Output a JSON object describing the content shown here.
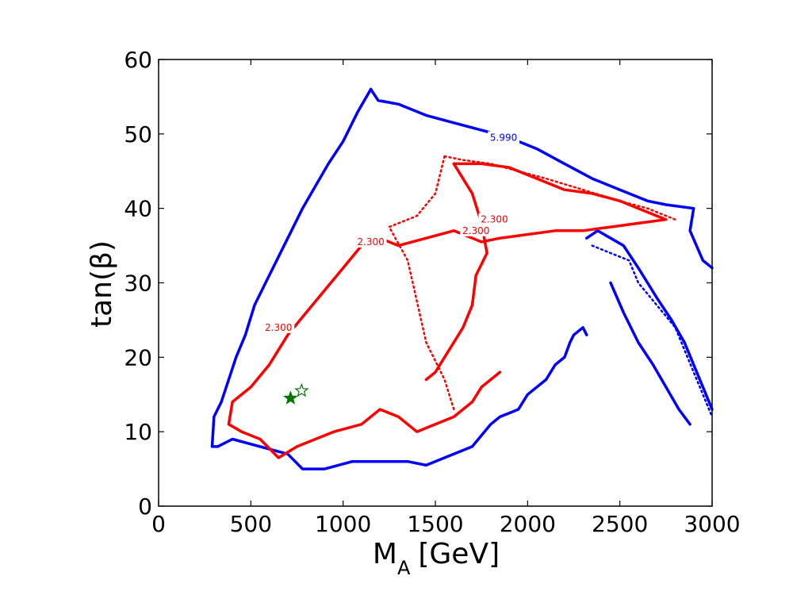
{
  "chart_data": {
    "type": "line",
    "title": "",
    "xlabel_main": "M",
    "xlabel_sub": "A",
    "xlabel_unit": "[GeV]",
    "ylabel": "tan(β)",
    "xlim": [
      0,
      3000
    ],
    "ylim": [
      0,
      60
    ],
    "xticks": [
      0,
      500,
      1000,
      1500,
      2000,
      2500,
      3000
    ],
    "yticks": [
      0,
      10,
      20,
      30,
      40,
      50,
      60
    ],
    "xtick_labels": [
      "0",
      "500",
      "1000",
      "1500",
      "2000",
      "2500",
      "3000"
    ],
    "ytick_labels": [
      "0",
      "10",
      "20",
      "30",
      "40",
      "50",
      "60"
    ],
    "grid": false,
    "colors": {
      "blue": "#0000ff",
      "red": "#ff0000",
      "green": "#007700"
    },
    "series": [
      {
        "color": "blue",
        "style": "solid",
        "x": [
          1150,
          1190,
          1300,
          1450,
          1600,
          1750,
          1900,
          2050,
          2200,
          2350,
          2500,
          2650,
          2750,
          2900,
          2880,
          2950,
          3000
        ],
        "y": [
          56,
          54.5,
          54,
          52.5,
          51.5,
          50.5,
          49.5,
          48,
          46,
          44,
          42.5,
          41,
          40.5,
          40,
          37,
          33,
          32
        ]
      },
      {
        "color": "blue",
        "style": "solid",
        "x": [
          1150,
          1080,
          1000,
          920,
          850,
          780,
          700,
          640,
          580,
          520,
          470,
          420,
          380,
          340,
          300,
          290,
          320,
          400,
          550,
          700,
          780,
          900,
          1050,
          1200,
          1350,
          1450,
          1600,
          1700,
          1800,
          1850,
          1900,
          1950,
          2000,
          2100,
          2150,
          2200,
          2230,
          2250,
          2300,
          2320
        ],
        "y": [
          56,
          53,
          49,
          46,
          43,
          40,
          36,
          33,
          30,
          27,
          23,
          20,
          17,
          14,
          12,
          8,
          8,
          9,
          8,
          7,
          5,
          5,
          6,
          6,
          6,
          5.5,
          7,
          8,
          11,
          12,
          12.5,
          13,
          15,
          17,
          19,
          20,
          22,
          23,
          24,
          23
        ]
      },
      {
        "color": "blue",
        "style": "solid",
        "x": [
          2320,
          2380,
          2450,
          2520,
          2600,
          2650,
          2700,
          2780,
          2850,
          2900,
          2950,
          3000
        ],
        "y": [
          36,
          37,
          36,
          35,
          32,
          30,
          28,
          25,
          22,
          19,
          16,
          13
        ]
      },
      {
        "color": "blue",
        "style": "dotted",
        "x": [
          2350,
          2450,
          2550,
          2600,
          2700,
          2800,
          2850,
          2900,
          2950,
          3000
        ],
        "y": [
          35,
          34,
          33,
          30,
          27,
          24,
          21,
          18,
          15,
          12
        ]
      },
      {
        "color": "blue",
        "style": "solid",
        "x": [
          2450,
          2520,
          2600,
          2680,
          2750,
          2820,
          2880
        ],
        "y": [
          30,
          26,
          22,
          19,
          16,
          13,
          11
        ]
      },
      {
        "color": "red",
        "style": "solid",
        "x": [
          1600,
          1750,
          1900,
          2050,
          2200,
          2350,
          2500,
          2600,
          2700,
          2750,
          2600,
          2450,
          2300,
          2150,
          2000,
          1850,
          1750,
          1600,
          1450,
          1300,
          1200,
          1100,
          1000,
          900,
          800,
          700,
          600,
          500,
          400,
          380,
          450,
          550,
          650,
          750,
          850,
          950,
          1100,
          1200,
          1300,
          1400,
          1500,
          1600,
          1700,
          1750,
          1800,
          1850
        ],
        "y": [
          46,
          46,
          45.5,
          44,
          42.5,
          42,
          41,
          40,
          39,
          38.5,
          38,
          37.5,
          37,
          37,
          36.5,
          36,
          35.5,
          37,
          36,
          35,
          36,
          35,
          32,
          29,
          26,
          23,
          19,
          16,
          14,
          11,
          10,
          9,
          6.5,
          8,
          9,
          10,
          11,
          13,
          12,
          10,
          11,
          12,
          14,
          16,
          17,
          18
        ]
      },
      {
        "color": "red",
        "style": "solid",
        "x": [
          1600,
          1700,
          1750,
          1780,
          1720,
          1700,
          1650,
          1600,
          1550,
          1500,
          1450
        ],
        "y": [
          46,
          42,
          38,
          34,
          31,
          27,
          24,
          22,
          20,
          18,
          17
        ]
      },
      {
        "color": "red",
        "style": "dotted",
        "x": [
          1550,
          1650,
          1800,
          1950,
          2100,
          2300,
          2500,
          2650,
          2800
        ],
        "y": [
          47,
          46.5,
          46,
          45,
          44,
          42.5,
          41,
          40,
          38.5
        ]
      },
      {
        "color": "red",
        "style": "dotted",
        "x": [
          1550,
          1500,
          1400,
          1300,
          1250,
          1350,
          1450,
          1550,
          1600
        ],
        "y": [
          47,
          42,
          39,
          38,
          37.5,
          33,
          22,
          17,
          13
        ]
      }
    ],
    "contour_labels": [
      {
        "text": "5.990",
        "x": 1870,
        "y": 49.5,
        "color": "blue"
      },
      {
        "text": "2.300",
        "x": 1150,
        "y": 35.5,
        "color": "red"
      },
      {
        "text": "2.300",
        "x": 1720,
        "y": 37,
        "color": "red"
      },
      {
        "text": "2.300",
        "x": 1820,
        "y": 38.5,
        "color": "red"
      },
      {
        "text": "2.300",
        "x": 650,
        "y": 24,
        "color": "red"
      }
    ],
    "markers": [
      {
        "type": "filled-star",
        "x": 715,
        "y": 14.5,
        "color": "green"
      },
      {
        "type": "open-star",
        "x": 775,
        "y": 15.5,
        "color": "green"
      }
    ]
  }
}
